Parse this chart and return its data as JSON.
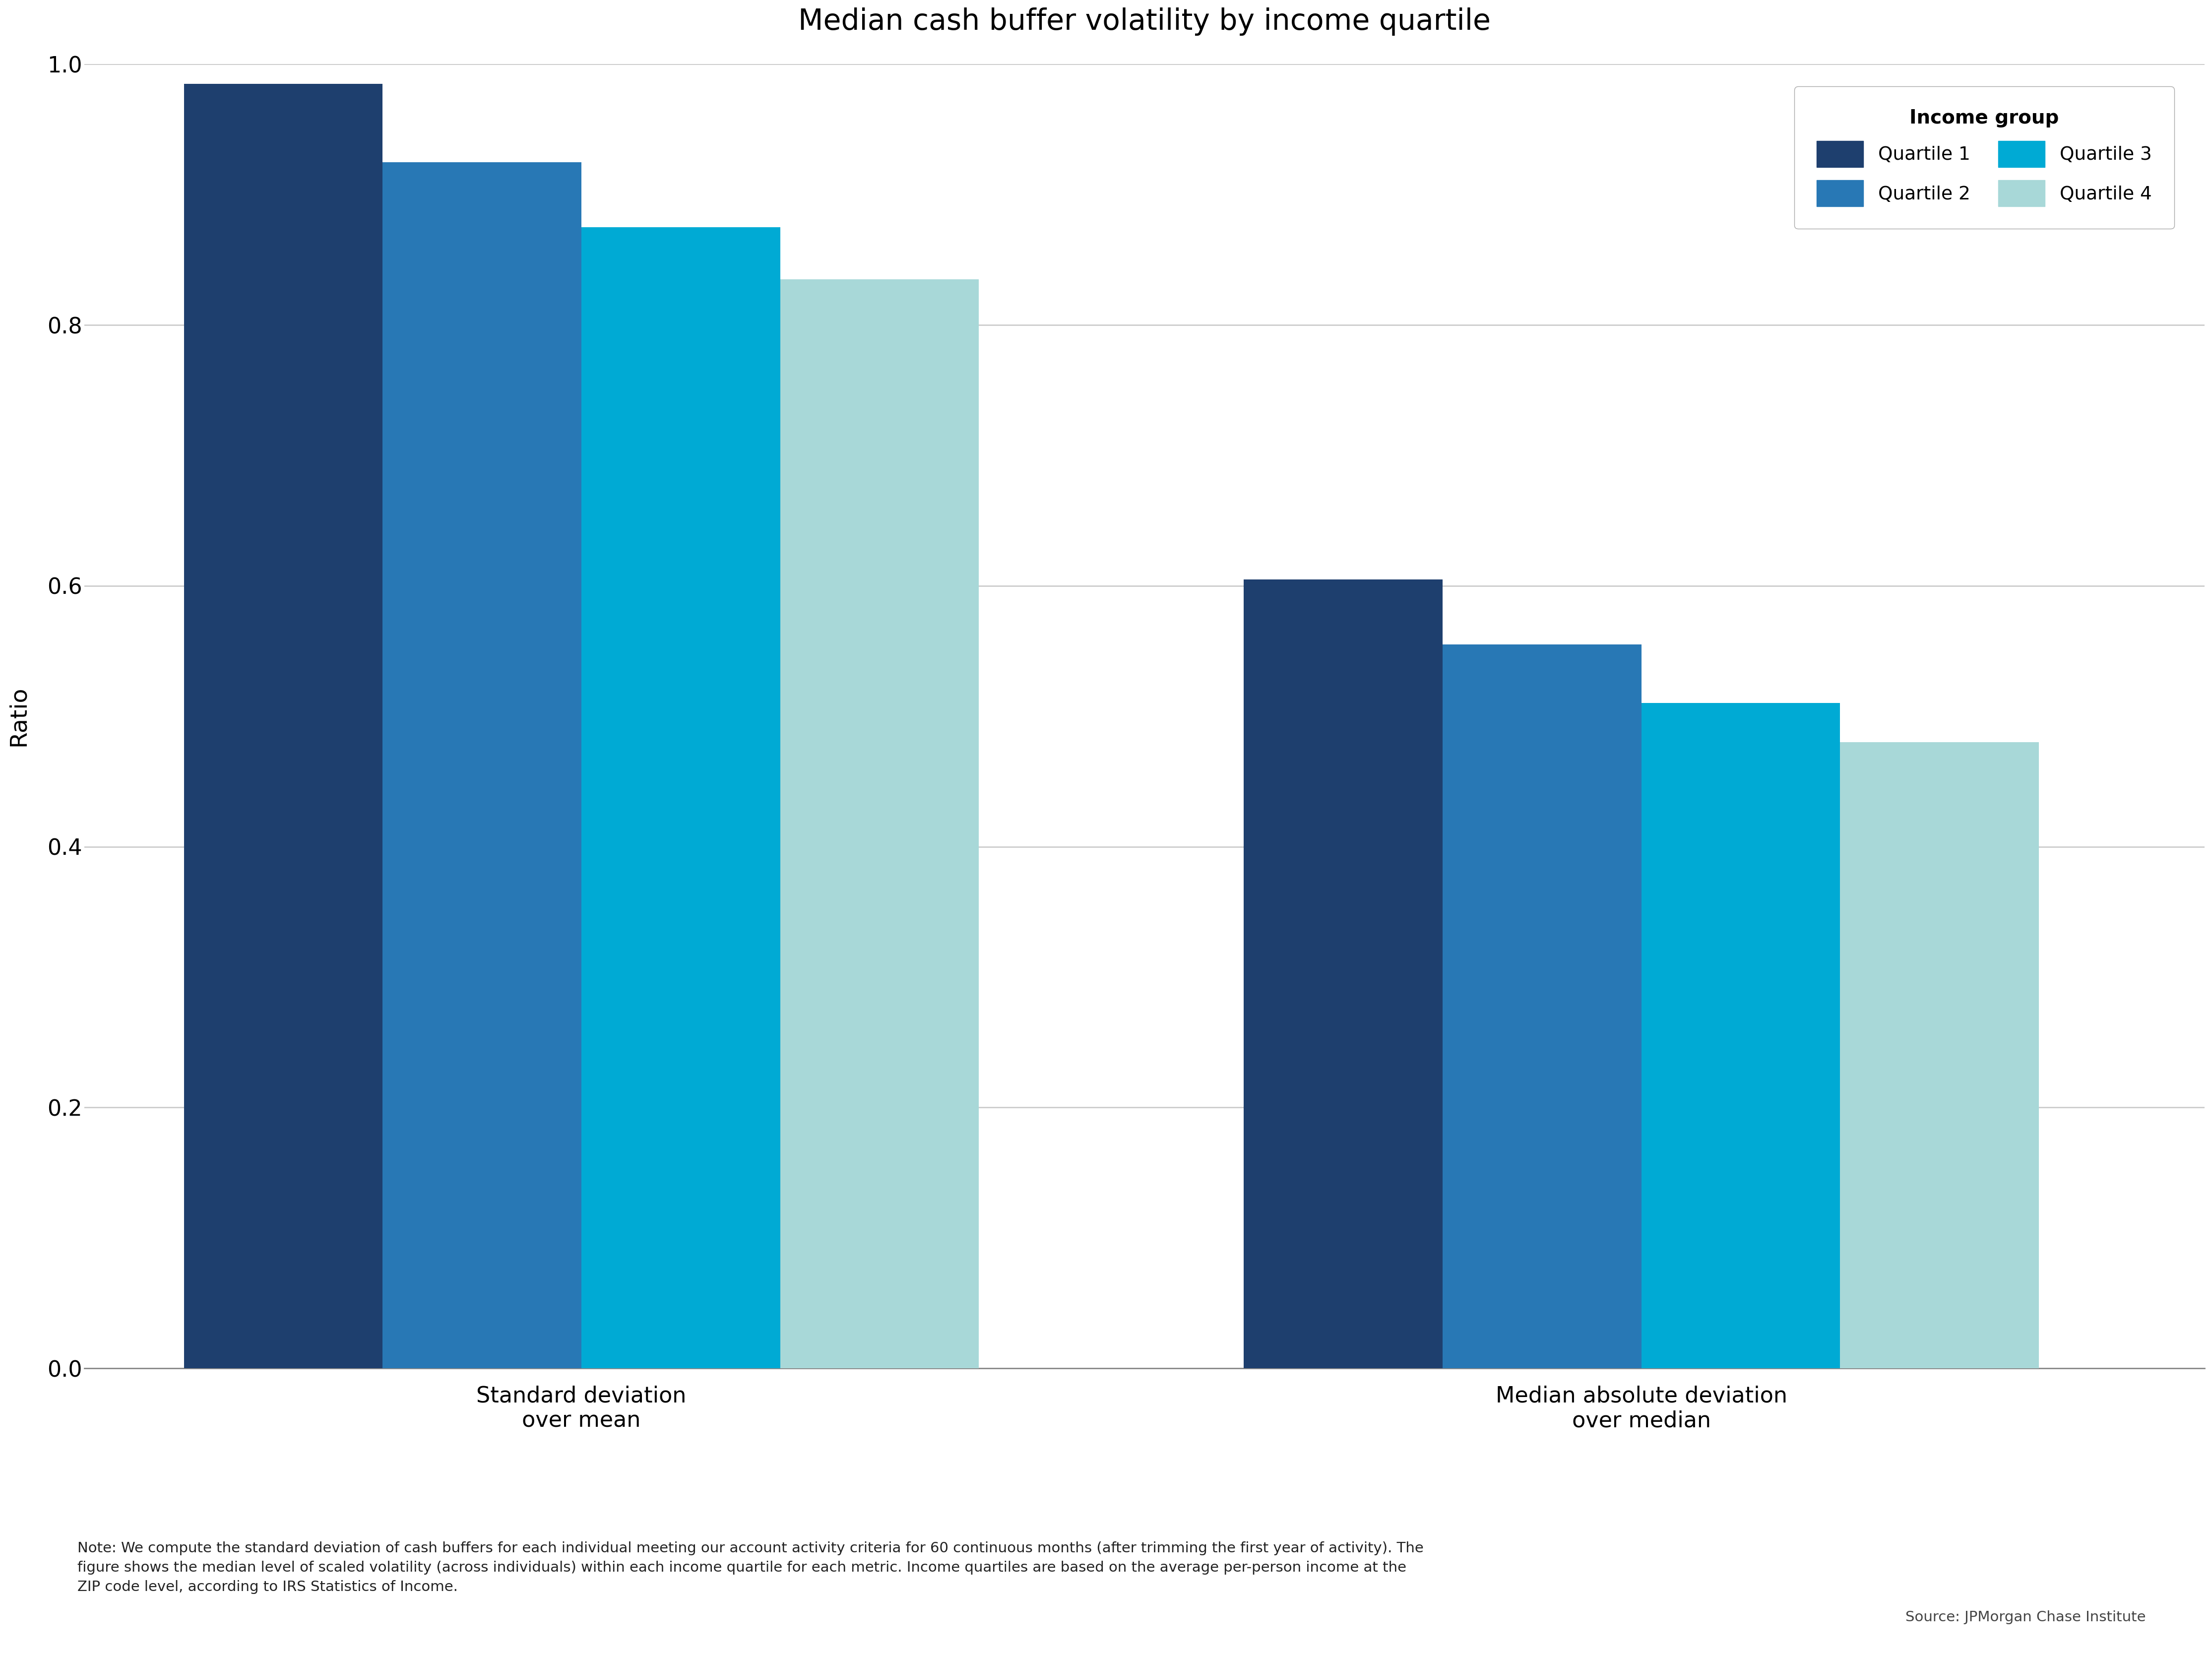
{
  "title": "Median cash buffer volatility by income quartile",
  "ylabel": "Ratio",
  "categories": [
    "Standard deviation\nover mean",
    "Median absolute deviation\nover median"
  ],
  "quartile_labels": [
    "Quartile 1",
    "Quartile 2",
    "Quartile 3",
    "Quartile 4"
  ],
  "values": {
    "Standard deviation over mean": [
      0.985,
      0.925,
      0.875,
      0.835
    ],
    "Median absolute deviation over median": [
      0.605,
      0.555,
      0.51,
      0.48
    ]
  },
  "colors": [
    "#1e3f6e",
    "#2878b5",
    "#00aad4",
    "#a8d8d8"
  ],
  "ylim": [
    0,
    1.0
  ],
  "yticks": [
    0.0,
    0.2,
    0.4,
    0.6,
    0.8,
    1.0
  ],
  "legend_title": "Income group",
  "note_text": "Note: We compute the standard deviation of cash buffers for each individual meeting our account activity criteria for 60 continuous months (after trimming the first year of activity). The\nfigure shows the median level of scaled volatility (across individuals) within each income quartile for each metric. Income quartiles are based on the average per-person income at the\nZIP code level, according to IRS Statistics of Income.",
  "source_text": "Source: JPMorgan Chase Institute",
  "background_color": "#ffffff",
  "bar_width": 0.3,
  "group_centers": [
    1.0,
    2.6
  ],
  "xlim": [
    0.25,
    3.45
  ]
}
